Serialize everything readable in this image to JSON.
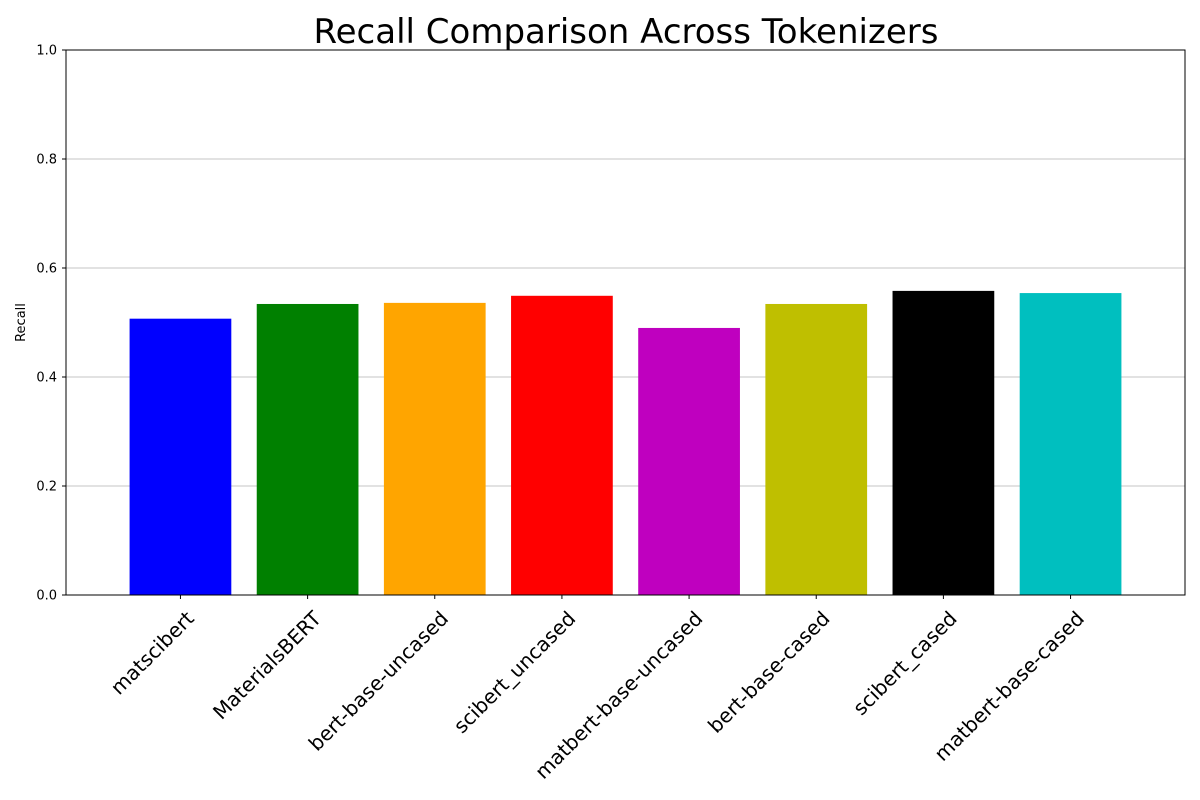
{
  "chart_data": {
    "type": "bar",
    "title": "Recall Comparison Across Tokenizers",
    "xlabel": "",
    "ylabel": "Recall",
    "ylim": [
      0,
      1.0
    ],
    "yticks": [
      "0.0",
      "0.2",
      "0.4",
      "0.6",
      "0.8",
      "1.0"
    ],
    "grid": "y",
    "categories": [
      "matscibert",
      "MaterialsBERT",
      "bert-base-uncased",
      "scibert_uncased",
      "matbert-base-uncased",
      "bert-base-cased",
      "scibert_cased",
      "matbert-base-cased"
    ],
    "values": [
      0.507,
      0.534,
      0.536,
      0.549,
      0.49,
      0.534,
      0.558,
      0.554
    ],
    "colors": [
      "#0000ff",
      "#008000",
      "#ffa500",
      "#ff0000",
      "#bf00bf",
      "#bfbf00",
      "#000000",
      "#00bfbf"
    ]
  }
}
